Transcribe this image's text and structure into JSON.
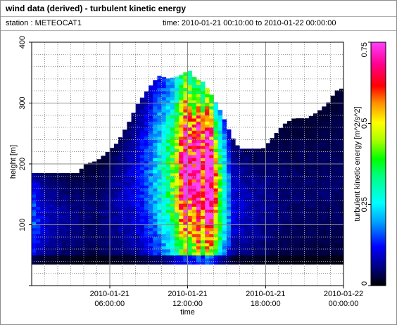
{
  "header": {
    "title": "wind data (derived) - turbulent kinetic energy",
    "station": "station : METEOCAT1",
    "timerange": "time: 2010-01-21 00:10:00 to 2010-01-22 00:00:00"
  },
  "chart_data": {
    "type": "heatmap",
    "title": "wind data (derived) - turbulent kinetic energy",
    "xlabel": "time",
    "ylabel": "height [m]",
    "x_ticks": [
      {
        "hours": 6,
        "line1": "2010-01-21",
        "line2": "06:00:00"
      },
      {
        "hours": 12,
        "line1": "2010-01-21",
        "line2": "12:00:00"
      },
      {
        "hours": 18,
        "line1": "2010-01-21",
        "line2": "18:00:00"
      },
      {
        "hours": 24,
        "line1": "2010-01-22",
        "line2": "00:00:00"
      }
    ],
    "xlim_hours": [
      0,
      24
    ],
    "y_ticks": [
      100,
      200,
      300,
      400
    ],
    "ylim": [
      0,
      400
    ],
    "colorbar": {
      "label": "turbulent kinetic energy [m^2/s^2]",
      "range": [
        0,
        0.75
      ],
      "ticks": [
        {
          "value": 0,
          "label": "0"
        },
        {
          "value": 0.25,
          "label": "0.25"
        },
        {
          "value": 0.5,
          "label": "0.5"
        },
        {
          "value": 0.75,
          "label": "0.75"
        }
      ]
    },
    "grid": true,
    "data_bottom_m": 35,
    "data_top_m_by_hour": [
      [
        0,
        185
      ],
      [
        1.5,
        185
      ],
      [
        3.5,
        185
      ],
      [
        4.2,
        200
      ],
      [
        5,
        205
      ],
      [
        5.6,
        215
      ],
      [
        6.6,
        235
      ],
      [
        7.4,
        265
      ],
      [
        8.2,
        300
      ],
      [
        9.2,
        330
      ],
      [
        9.8,
        345
      ],
      [
        10.6,
        340
      ],
      [
        11.4,
        345
      ],
      [
        12.1,
        355
      ],
      [
        12.6,
        340
      ],
      [
        13.2,
        335
      ],
      [
        13.8,
        315
      ],
      [
        14.6,
        285
      ],
      [
        15.4,
        245
      ],
      [
        16,
        225
      ],
      [
        17.8,
        225
      ],
      [
        18.6,
        245
      ],
      [
        19.4,
        265
      ],
      [
        20.2,
        275
      ],
      [
        21.2,
        275
      ],
      [
        22,
        285
      ],
      [
        22.8,
        300
      ],
      [
        23.4,
        320
      ],
      [
        24,
        325
      ]
    ],
    "tke_profile_by_hour": [
      [
        0,
        0.12
      ],
      [
        1,
        0.06
      ],
      [
        3,
        0.04
      ],
      [
        5,
        0.03
      ],
      [
        8,
        0.07
      ],
      [
        9,
        0.11
      ],
      [
        10.2,
        0.2
      ],
      [
        11,
        0.28
      ],
      [
        11.5,
        0.42
      ],
      [
        12,
        0.55
      ],
      [
        12.3,
        0.38
      ],
      [
        12.8,
        0.55
      ],
      [
        13.2,
        0.42
      ],
      [
        13.6,
        0.62
      ],
      [
        14.2,
        0.35
      ],
      [
        14.8,
        0.2
      ],
      [
        15.5,
        0.07
      ],
      [
        17,
        0.05
      ],
      [
        20,
        0.03
      ],
      [
        24,
        0.03
      ]
    ]
  }
}
